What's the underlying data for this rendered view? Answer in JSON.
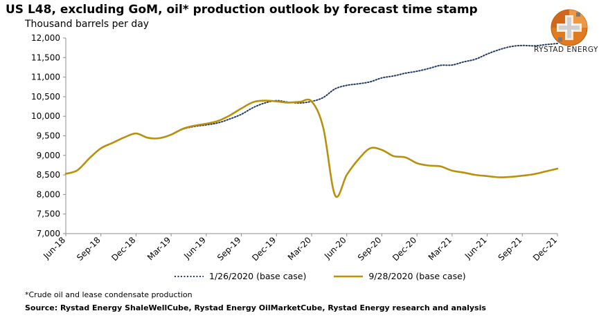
{
  "header": {
    "title": "US L48, excluding GoM, oil* production outlook by forecast time stamp",
    "subtitle": "Thousand barrels per day"
  },
  "brand": {
    "name": "RYSTAD ENERGY",
    "accent": "#E07B20"
  },
  "footer": {
    "footnote": "*Crude oil and lease condensate production",
    "source": "Source: Rystad Energy ShaleWellCube, Rystad Energy OilMarketCube, Rystad Energy research and analysis"
  },
  "chart_data": {
    "type": "line",
    "title": "US L48, excluding GoM, oil* production outlook by forecast time stamp",
    "ylabel": "Thousand barrels per day",
    "xlabel": "",
    "ylim": [
      7000,
      12000
    ],
    "yticks": [
      7000,
      7500,
      8000,
      8500,
      9000,
      9500,
      10000,
      10500,
      11000,
      11500,
      12000
    ],
    "ytick_labels": [
      "7,000",
      "7,500",
      "8,000",
      "8,500",
      "9,000",
      "9,500",
      "10,000",
      "10,500",
      "11,000",
      "11,500",
      "12,000"
    ],
    "x_ticks": [
      "Jun-18",
      "Sep-18",
      "Dec-18",
      "Mar-19",
      "Jun-19",
      "Sep-19",
      "Dec-19",
      "Mar-20",
      "Jun-20",
      "Sep-20",
      "Dec-20",
      "Mar-21",
      "Jun-21",
      "Sep-21",
      "Dec-21"
    ],
    "x_range_months": [
      "2018-06",
      "2021-12"
    ],
    "grid": false,
    "legend_position": "bottom",
    "series": [
      {
        "name": "1/26/2020 (base case)",
        "color": "#1F3864",
        "style": "dotted",
        "x": [
          0,
          1,
          2,
          3,
          4,
          5,
          6,
          7,
          8,
          9,
          10,
          11,
          12,
          13,
          14,
          15,
          16,
          17,
          18,
          19,
          20,
          21,
          22,
          23,
          24,
          25,
          26,
          27,
          28,
          29,
          30,
          31,
          32,
          33,
          34,
          35,
          36,
          37,
          38,
          39,
          40,
          41,
          42
        ],
        "values": [
          8530,
          8620,
          8920,
          9180,
          9320,
          9460,
          9560,
          9450,
          9440,
          9530,
          9670,
          9740,
          9780,
          9830,
          9930,
          10050,
          10220,
          10340,
          10400,
          10360,
          10340,
          10380,
          10480,
          10700,
          10790,
          10830,
          10880,
          10980,
          11030,
          11100,
          11150,
          11220,
          11300,
          11310,
          11390,
          11460,
          11590,
          11700,
          11780,
          11810,
          11800,
          11830,
          11860
        ]
      },
      {
        "name": "9/28/2020 (base case)",
        "color": "#B8900A",
        "style": "solid",
        "x": [
          0,
          1,
          2,
          3,
          4,
          5,
          6,
          7,
          8,
          9,
          10,
          11,
          12,
          13,
          14,
          15,
          16,
          17,
          18,
          19,
          20,
          21,
          22,
          23,
          24,
          25,
          26,
          27,
          28,
          29,
          30,
          31,
          32,
          33,
          34,
          35,
          36,
          37,
          38,
          39,
          40,
          41,
          42
        ],
        "values": [
          8530,
          8620,
          8920,
          9180,
          9320,
          9460,
          9560,
          9450,
          9440,
          9530,
          9680,
          9760,
          9810,
          9880,
          10020,
          10200,
          10360,
          10400,
          10380,
          10350,
          10370,
          10380,
          9700,
          7980,
          8500,
          8900,
          9180,
          9140,
          8980,
          8950,
          8800,
          8740,
          8720,
          8610,
          8560,
          8500,
          8470,
          8440,
          8450,
          8480,
          8520,
          8590,
          8660
        ]
      }
    ]
  }
}
